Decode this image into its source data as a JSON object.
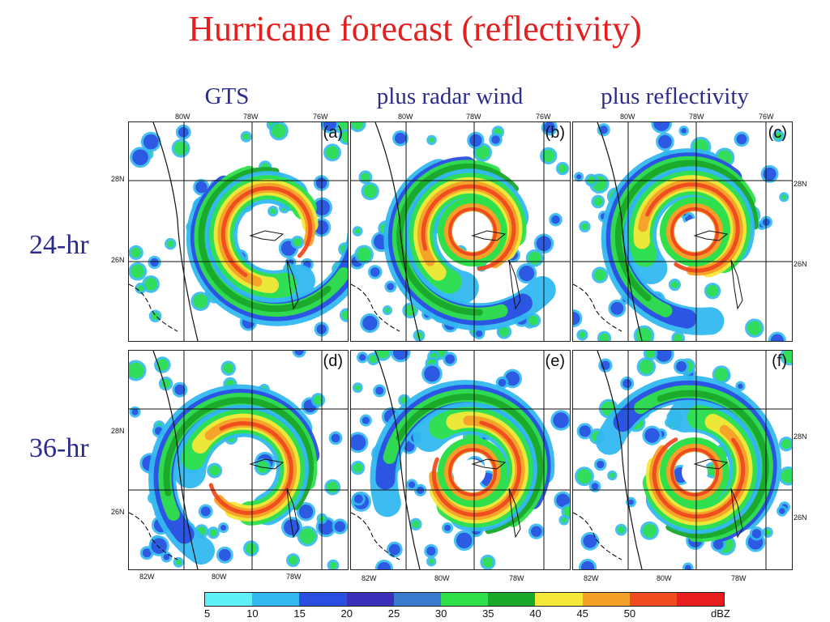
{
  "title": "Hurricane forecast (reflectivity)",
  "columns": [
    "GTS",
    "plus radar wind",
    "plus reflectivity"
  ],
  "rows": [
    "24-hr",
    "36-hr"
  ],
  "panels": [
    {
      "letter": "(a)",
      "eye_visible": false
    },
    {
      "letter": "(b)",
      "eye_visible": true
    },
    {
      "letter": "(c)",
      "eye_visible": true
    },
    {
      "letter": "(d)",
      "eye_visible": false
    },
    {
      "letter": "(e)",
      "eye_visible": true
    },
    {
      "letter": "(f)",
      "eye_visible": true
    }
  ],
  "top_axis_labels": [
    "80W",
    "78W",
    "76W"
  ],
  "bottom_axis_labels": [
    "82W",
    "80W",
    "78W"
  ],
  "lat_labels_row1": [
    "28N",
    "26N"
  ],
  "lat_labels_row2": [
    "28N",
    "26N"
  ],
  "colorbar": {
    "unit": "dBZ",
    "labels": [
      "5",
      "10",
      "15",
      "20",
      "25",
      "30",
      "35",
      "40",
      "45",
      "50"
    ],
    "colors": [
      "#5ef0f5",
      "#33b8f0",
      "#2a4fe0",
      "#3a2fb8",
      "#3a7bd0",
      "#2fe04a",
      "#1aa82a",
      "#f5e838",
      "#f5a028",
      "#f04a20",
      "#e81e1e"
    ]
  }
}
